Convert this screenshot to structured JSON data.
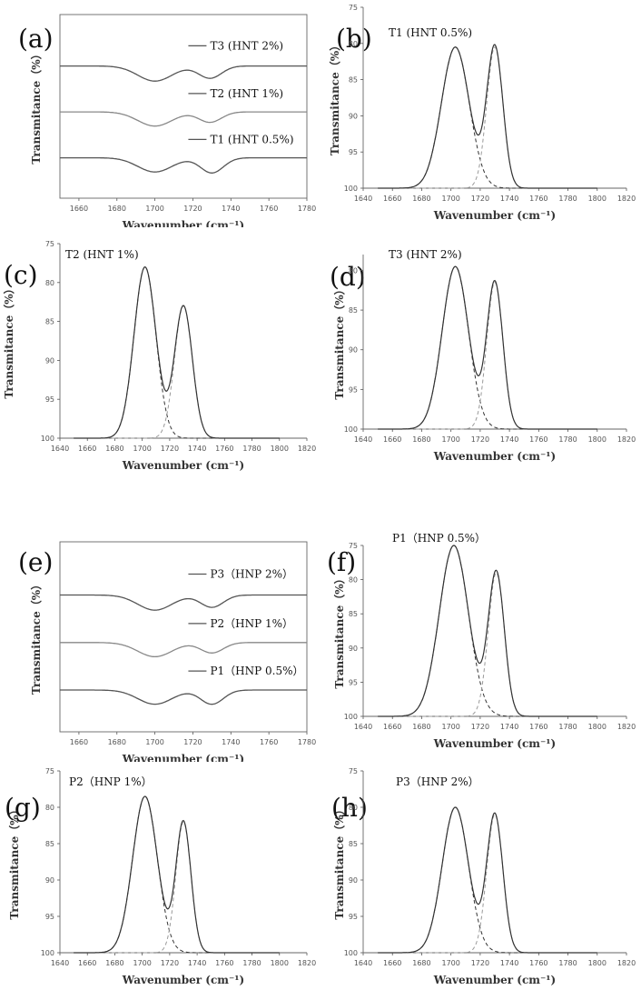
{
  "chart_data": [
    {
      "panel": "(a)",
      "type": "line",
      "xlabel": "Wavenumber",
      "xunit": "(cm⁻¹)",
      "ylabel": "Transmitance（%）",
      "xlim": [
        1650,
        1780
      ],
      "xticks": [
        1660,
        1680,
        1700,
        1720,
        1740,
        1760,
        1780
      ],
      "yticks": [],
      "series": [
        {
          "name": "T3 (HNT 2%)",
          "baseline": 0,
          "peaks": [
            {
              "center": 1700,
              "depth": 3.2,
              "width": 9
            },
            {
              "center": 1729,
              "depth": 2.6,
              "width": 6
            }
          ]
        },
        {
          "name": "T2 (HNT 1%)",
          "baseline": 10,
          "peaks": [
            {
              "center": 1700,
              "depth": 3.0,
              "width": 9
            },
            {
              "center": 1729,
              "depth": 2.2,
              "width": 6
            }
          ]
        },
        {
          "name": "T1 (HNT  0.5%)",
          "baseline": 20,
          "peaks": [
            {
              "center": 1700,
              "depth": 3.0,
              "width": 9
            },
            {
              "center": 1730,
              "depth": 3.2,
              "width": 6
            }
          ]
        }
      ]
    },
    {
      "panel": "(b)",
      "type": "line",
      "title": "T1 (HNT  0.5%)",
      "xlabel": "Wavenumber",
      "xunit": "(cm⁻¹)",
      "ylabel": "Transmitance（%）",
      "xlim": [
        1640,
        1820
      ],
      "ylim": [
        75,
        100
      ],
      "xticks": [
        1640,
        1660,
        1680,
        1700,
        1720,
        1740,
        1760,
        1780,
        1800,
        1820
      ],
      "yticks": [
        75,
        80,
        85,
        90,
        95,
        100
      ],
      "baseline": 100,
      "x_range": [
        1650,
        1800
      ],
      "components": [
        {
          "center": 1703,
          "depth": 19.5,
          "width": 9.5
        },
        {
          "center": 1730,
          "depth": 19.5,
          "width": 5.5
        }
      ]
    },
    {
      "panel": "(c)",
      "type": "line",
      "title": "T2 (HNT 1%)",
      "xlabel": "Wavenumber",
      "xunit": "(cm⁻¹)",
      "ylabel": "Transmitance（%）",
      "xlim": [
        1640,
        1820
      ],
      "ylim": [
        75,
        100
      ],
      "xticks": [
        1640,
        1660,
        1680,
        1700,
        1720,
        1740,
        1760,
        1780,
        1800,
        1820
      ],
      "yticks": [
        75,
        80,
        85,
        90,
        95,
        100
      ],
      "baseline": 100,
      "x_range": [
        1650,
        1800
      ],
      "components": [
        {
          "center": 1702,
          "depth": 22,
          "width": 8
        },
        {
          "center": 1730,
          "depth": 17,
          "width": 6.5
        }
      ]
    },
    {
      "panel": "(d)",
      "type": "line",
      "title": "T3 (HNT  2%)",
      "xlabel": "Wavenumber",
      "xunit": "(cm⁻¹)",
      "ylabel": "Transmitance（%）",
      "xlim": [
        1640,
        1820
      ],
      "ylim": [
        78,
        100
      ],
      "xticks": [
        1640,
        1660,
        1680,
        1700,
        1720,
        1740,
        1760,
        1780,
        1800,
        1820
      ],
      "yticks": [
        80,
        85,
        90,
        95,
        100
      ],
      "baseline": 100,
      "x_range": [
        1650,
        1800
      ],
      "components": [
        {
          "center": 1703,
          "depth": 20.5,
          "width": 9
        },
        {
          "center": 1730,
          "depth": 18.5,
          "width": 5.5
        }
      ]
    },
    {
      "panel": "(e)",
      "type": "line",
      "xlabel": "Wavenumber",
      "xunit": "(cm⁻¹)",
      "ylabel": "Transmitance（%）",
      "xlim": [
        1650,
        1780
      ],
      "xticks": [
        1660,
        1680,
        1700,
        1720,
        1740,
        1760,
        1780
      ],
      "yticks": [],
      "series": [
        {
          "name": "P3（HNP  2%）",
          "baseline": 0,
          "peaks": [
            {
              "center": 1700,
              "depth": 3.2,
              "width": 9
            },
            {
              "center": 1730,
              "depth": 2.6,
              "width": 6
            }
          ]
        },
        {
          "name": "P2（HNP  1%）",
          "baseline": 10,
          "peaks": [
            {
              "center": 1700,
              "depth": 3.0,
              "width": 9
            },
            {
              "center": 1730,
              "depth": 2.2,
              "width": 6
            }
          ]
        },
        {
          "name": "P1（HNP  0.5%）",
          "baseline": 20,
          "peaks": [
            {
              "center": 1700,
              "depth": 3.0,
              "width": 9
            },
            {
              "center": 1730,
              "depth": 3.0,
              "width": 6
            }
          ]
        }
      ]
    },
    {
      "panel": "(f)",
      "type": "line",
      "title": "P1（HNP  0.5%）",
      "xlabel": "Wavenumber",
      "xunit": "(cm⁻¹)",
      "ylabel": "Transmitance（%）",
      "xlim": [
        1640,
        1820
      ],
      "ylim": [
        75,
        100
      ],
      "xticks": [
        1640,
        1660,
        1680,
        1700,
        1720,
        1740,
        1760,
        1780,
        1800,
        1820
      ],
      "yticks": [
        75,
        80,
        85,
        90,
        95,
        100
      ],
      "baseline": 100,
      "x_range": [
        1650,
        1800
      ],
      "components": [
        {
          "center": 1702,
          "depth": 25,
          "width": 10
        },
        {
          "center": 1731,
          "depth": 21,
          "width": 5.5
        }
      ]
    },
    {
      "panel": "(g)",
      "type": "line",
      "title": "P2（HNP  1%）",
      "xlabel": "Wavenumber",
      "xunit": "(cm⁻¹)",
      "ylabel": "Transmitance（%）",
      "xlim": [
        1640,
        1820
      ],
      "ylim": [
        75,
        100
      ],
      "xticks": [
        1640,
        1660,
        1680,
        1700,
        1720,
        1740,
        1760,
        1780,
        1800,
        1820
      ],
      "yticks": [
        75,
        80,
        85,
        90,
        95,
        100
      ],
      "baseline": 100,
      "x_range": [
        1650,
        1800
      ],
      "components": [
        {
          "center": 1702,
          "depth": 21.5,
          "width": 9
        },
        {
          "center": 1730,
          "depth": 18,
          "width": 5.5
        }
      ]
    },
    {
      "panel": "(h)",
      "type": "line",
      "title": "P3（HNP  2%）",
      "xlabel": "Wavenumber",
      "xunit": "(cm⁻¹)",
      "ylabel": "Transmitance（%）",
      "xlim": [
        1640,
        1820
      ],
      "ylim": [
        75,
        100
      ],
      "xticks": [
        1640,
        1660,
        1680,
        1700,
        1720,
        1740,
        1760,
        1780,
        1800,
        1820
      ],
      "yticks": [
        75,
        80,
        85,
        90,
        95,
        100
      ],
      "baseline": 100,
      "x_range": [
        1650,
        1800
      ],
      "components": [
        {
          "center": 1703,
          "depth": 20,
          "width": 9
        },
        {
          "center": 1730,
          "depth": 19,
          "width": 5.5
        }
      ]
    }
  ]
}
